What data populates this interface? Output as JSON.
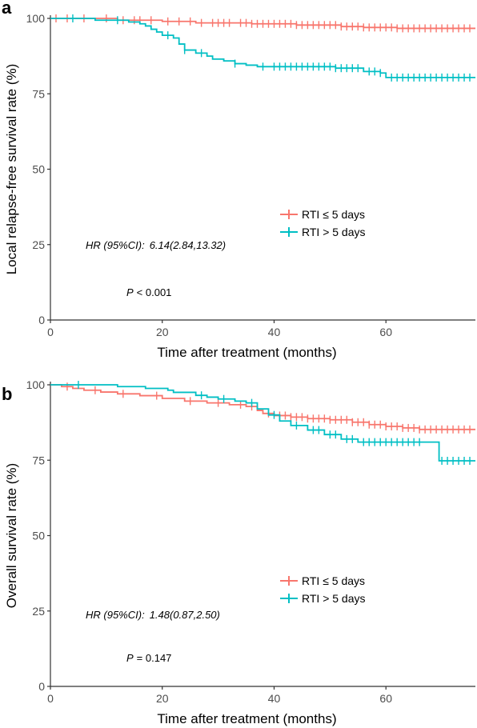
{
  "chart_data": [
    {
      "panel": "a",
      "type": "line",
      "xlabel": "Time after treatment (months)",
      "ylabel": "Local relapse-free survival rate (%)",
      "xlim": [
        0,
        76
      ],
      "ylim": [
        0,
        100
      ],
      "x_ticks": [
        0,
        20,
        40,
        60
      ],
      "y_ticks": [
        0,
        25,
        50,
        75,
        100
      ],
      "grid": false,
      "legend_position": "center-right",
      "annotation_hr_label": "HR (95%CI):",
      "annotation_hr_value": "6.14(2.84,13.32)",
      "annotation_p_symbol": "P",
      "annotation_p_text": "< 0.001",
      "series": [
        {
          "name": "RTI ≤ 5 days",
          "color": "#F8766D",
          "steps": [
            [
              0,
              100
            ],
            [
              12,
              99.4
            ],
            [
              20,
              99
            ],
            [
              26,
              98.5
            ],
            [
              36,
              98.2
            ],
            [
              44,
              97.8
            ],
            [
              52,
              97.3
            ],
            [
              56,
              97.0
            ],
            [
              62,
              96.7
            ],
            [
              76,
              96.7
            ]
          ],
          "censor_x": [
            1,
            3,
            6,
            10,
            13,
            15,
            16,
            18,
            21,
            23,
            25,
            27,
            29,
            30,
            31,
            32,
            34,
            35,
            36,
            37,
            38,
            39,
            40,
            41,
            42,
            43,
            44,
            45,
            46,
            47,
            48,
            49,
            50,
            51,
            52,
            53,
            54,
            55,
            56,
            57,
            58,
            59,
            60,
            61,
            62,
            63,
            64,
            65,
            66,
            67,
            68,
            69,
            70,
            71,
            72,
            73,
            74,
            75
          ]
        },
        {
          "name": "RTI > 5 days",
          "color": "#00BFC4",
          "steps": [
            [
              0,
              100
            ],
            [
              8,
              99.4
            ],
            [
              14,
              98.8
            ],
            [
              16,
              98.2
            ],
            [
              17,
              97.5
            ],
            [
              18,
              96.4
            ],
            [
              19,
              95.5
            ],
            [
              20,
              94.4
            ],
            [
              22,
              93.5
            ],
            [
              23,
              91.5
            ],
            [
              24,
              89.5
            ],
            [
              26,
              88.5
            ],
            [
              28,
              87.5
            ],
            [
              29,
              86.5
            ],
            [
              31,
              85.9
            ],
            [
              33,
              85.0
            ],
            [
              35,
              84.5
            ],
            [
              37,
              84.0
            ],
            [
              51,
              83.5
            ],
            [
              56,
              82.4
            ],
            [
              59,
              81.9
            ],
            [
              60,
              80.4
            ],
            [
              76,
              80.4
            ]
          ],
          "censor_x": [
            4,
            12,
            21,
            24,
            27,
            33,
            38,
            40,
            41,
            42,
            43,
            44,
            45,
            46,
            47,
            48,
            49,
            50,
            51,
            52,
            53,
            54,
            55,
            57,
            58,
            59,
            61,
            62,
            63,
            64,
            65,
            66,
            67,
            68,
            69,
            70,
            71,
            72,
            73,
            74,
            75
          ]
        }
      ]
    },
    {
      "panel": "b",
      "type": "line",
      "xlabel": "Time after treatment (months)",
      "ylabel": "Overall survival rate (%)",
      "xlim": [
        0,
        76
      ],
      "ylim": [
        0,
        100
      ],
      "x_ticks": [
        0,
        20,
        40,
        60
      ],
      "y_ticks": [
        0,
        25,
        50,
        75,
        100
      ],
      "grid": false,
      "legend_position": "center-right",
      "annotation_hr_label": "HR (95%CI):",
      "annotation_hr_value": "1.48(0.87,2.50)",
      "annotation_p_symbol": "P",
      "annotation_p_text": "= 0.147",
      "series": [
        {
          "name": "RTI ≤ 5 days",
          "color": "#F8766D",
          "steps": [
            [
              0,
              100
            ],
            [
              2,
              99.4
            ],
            [
              4,
              98.8
            ],
            [
              6,
              98.2
            ],
            [
              9,
              97.6
            ],
            [
              12,
              97.0
            ],
            [
              16,
              96.4
            ],
            [
              20,
              95.5
            ],
            [
              24,
              94.6
            ],
            [
              28,
              94.0
            ],
            [
              32,
              93.4
            ],
            [
              35,
              92.8
            ],
            [
              37,
              91.5
            ],
            [
              38,
              90.5
            ],
            [
              40,
              89.8
            ],
            [
              43,
              89.3
            ],
            [
              46,
              88.8
            ],
            [
              50,
              88.4
            ],
            [
              54,
              87.6
            ],
            [
              57,
              86.8
            ],
            [
              60,
              86.2
            ],
            [
              63,
              85.7
            ],
            [
              66,
              85.2
            ],
            [
              76,
              85.2
            ]
          ],
          "censor_x": [
            3,
            8,
            13,
            19,
            25,
            30,
            34,
            36,
            39,
            41,
            42,
            43,
            44,
            45,
            46,
            47,
            48,
            49,
            50,
            51,
            52,
            53,
            54,
            55,
            56,
            57,
            58,
            59,
            60,
            61,
            62,
            63,
            64,
            65,
            66,
            67,
            68,
            69,
            70,
            71,
            72,
            73,
            74,
            75
          ]
        },
        {
          "name": "RTI > 5 days",
          "color": "#00BFC4",
          "steps": [
            [
              0,
              100
            ],
            [
              12,
              99.4
            ],
            [
              17,
              98.8
            ],
            [
              21,
              98.2
            ],
            [
              22,
              97.5
            ],
            [
              26,
              96.5
            ],
            [
              28,
              95.9
            ],
            [
              30,
              95.3
            ],
            [
              33,
              94.6
            ],
            [
              35,
              94.0
            ],
            [
              37,
              92.0
            ],
            [
              39,
              90.0
            ],
            [
              41,
              88.0
            ],
            [
              43,
              86.5
            ],
            [
              46,
              85.0
            ],
            [
              49,
              83.5
            ],
            [
              52,
              82.0
            ],
            [
              55,
              81.0
            ],
            [
              69,
              81.0
            ],
            [
              69.5,
              74.8
            ],
            [
              76,
              74.8
            ]
          ],
          "censor_x": [
            5,
            27,
            31,
            36,
            40,
            44,
            47,
            48,
            50,
            51,
            53,
            54,
            56,
            57,
            58,
            59,
            60,
            61,
            62,
            63,
            64,
            65,
            66,
            70,
            71,
            72,
            73,
            74,
            75
          ]
        }
      ]
    }
  ]
}
